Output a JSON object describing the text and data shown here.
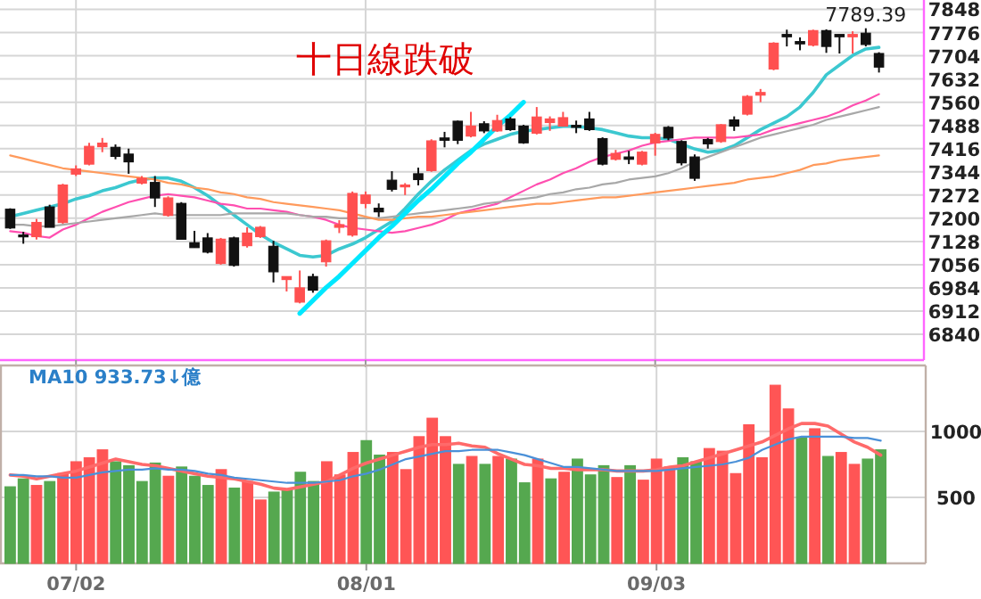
{
  "chart_data": [
    {
      "type": "candlestick",
      "categories": [
        null,
        null,
        null,
        null,
        null,
        null,
        null,
        null,
        null,
        null,
        null,
        null,
        null,
        null,
        null,
        null,
        null,
        null,
        null,
        null,
        null,
        null,
        null,
        null,
        null,
        null,
        null,
        null,
        null,
        null,
        null,
        null,
        null,
        null,
        null,
        null,
        null,
        null,
        null,
        null,
        null,
        null,
        null,
        null,
        null,
        null,
        null,
        null,
        null,
        null,
        null,
        null,
        null,
        null,
        null,
        null,
        null,
        null,
        null,
        null,
        null,
        null,
        null,
        null,
        null,
        null,
        null
      ],
      "ohlc": [
        [
          7228,
          7231,
          7167,
          7170
        ],
        [
          7148,
          7158,
          7121,
          7143
        ],
        [
          7143,
          7198,
          7134,
          7187
        ],
        [
          7235,
          7242,
          7172,
          7172
        ],
        [
          7187,
          7307,
          7183,
          7303
        ],
        [
          7337,
          7364,
          7331,
          7353
        ],
        [
          7368,
          7434,
          7364,
          7423
        ],
        [
          7422,
          7449,
          7405,
          7433
        ],
        [
          7420,
          7429,
          7383,
          7392
        ],
        [
          7399,
          7416,
          7338,
          7375
        ],
        [
          7309,
          7331,
          7305,
          7324
        ],
        [
          7311,
          7331,
          7235,
          7263
        ],
        [
          7209,
          7268,
          7205,
          7263
        ],
        [
          7246,
          7250,
          7135,
          7135
        ],
        [
          7124,
          7161,
          7109,
          7109
        ],
        [
          7139,
          7154,
          7091,
          7095
        ],
        [
          7060,
          7139,
          7056,
          7135
        ],
        [
          7139,
          7143,
          7050,
          7054
        ],
        [
          7115,
          7172,
          7109,
          7154
        ],
        [
          7143,
          7176,
          7139,
          7172
        ],
        [
          7113,
          7130,
          7001,
          7034
        ],
        [
          7010,
          7019,
          6973,
          7019
        ],
        [
          6940,
          7038,
          6936,
          6984
        ],
        [
          7019,
          7028,
          6969,
          6977
        ],
        [
          7065,
          7134,
          7050,
          7130
        ],
        [
          7172,
          7194,
          7154,
          7180
        ],
        [
          7148,
          7283,
          7143,
          7277
        ],
        [
          7246,
          7283,
          7231,
          7272
        ],
        [
          7231,
          7246,
          7204,
          7220
        ],
        [
          7318,
          7346,
          7283,
          7290
        ],
        [
          7300,
          7309,
          7272,
          7303
        ],
        [
          7338,
          7357,
          7302,
          7320
        ],
        [
          7348,
          7445,
          7344,
          7440
        ],
        [
          7449,
          7468,
          7420,
          7442
        ],
        [
          7501,
          7503,
          7430,
          7442
        ],
        [
          7455,
          7530,
          7451,
          7486
        ],
        [
          7493,
          7501,
          7464,
          7471
        ],
        [
          7471,
          7521,
          7468,
          7503
        ],
        [
          7508,
          7514,
          7471,
          7475
        ],
        [
          7486,
          7490,
          7431,
          7434
        ],
        [
          7464,
          7545,
          7460,
          7514
        ],
        [
          7497,
          7516,
          7471,
          7508
        ],
        [
          7486,
          7530,
          7484,
          7512
        ],
        [
          7488,
          7503,
          7464,
          7482
        ],
        [
          7508,
          7530,
          7471,
          7475
        ],
        [
          7447,
          7451,
          7364,
          7368
        ],
        [
          7383,
          7412,
          7379,
          7401
        ],
        [
          7390,
          7409,
          7368,
          7383
        ],
        [
          7368,
          7409,
          7364,
          7405
        ],
        [
          7434,
          7465,
          7394,
          7460
        ],
        [
          7482,
          7486,
          7442,
          7449
        ],
        [
          7438,
          7442,
          7364,
          7372
        ],
        [
          7390,
          7398,
          7316,
          7324
        ],
        [
          7444,
          7449,
          7416,
          7431
        ],
        [
          7438,
          7492,
          7434,
          7490
        ],
        [
          7505,
          7516,
          7471,
          7486
        ],
        [
          7523,
          7582,
          7519,
          7578
        ],
        [
          7582,
          7601,
          7560,
          7590
        ],
        [
          7663,
          7746,
          7659,
          7743
        ],
        [
          7770,
          7785,
          7733,
          7763
        ],
        [
          7748,
          7761,
          7721,
          7741
        ],
        [
          7737,
          7785,
          7733,
          7782
        ],
        [
          7782,
          7786,
          7713,
          7733
        ],
        [
          7770,
          7770,
          7711,
          7763
        ],
        [
          7763,
          7780,
          7711,
          7770
        ],
        [
          7774,
          7789.39,
          7733,
          7739
        ],
        [
          7711,
          7715,
          7652,
          7669
        ]
      ],
      "colors": [
        "#111111",
        "#111111",
        "#ff5050",
        "#111111",
        "#ff5050",
        "#ff5050",
        "#ff5050",
        "#ff5050",
        "#111111",
        "#111111",
        "#ff5050",
        "#111111",
        "#ff5050",
        "#111111",
        "#111111",
        "#111111",
        "#ff5050",
        "#111111",
        "#ff5050",
        "#ff5050",
        "#111111",
        "#ff5050",
        "#ff5050",
        "#111111",
        "#ff5050",
        "#ff5050",
        "#ff5050",
        "#ff5050",
        "#111111",
        "#111111",
        "#ff5050",
        "#111111",
        "#ff5050",
        "#111111",
        "#111111",
        "#ff5050",
        "#111111",
        "#ff5050",
        "#111111",
        "#111111",
        "#ff5050",
        "#ff5050",
        "#ff5050",
        "#111111",
        "#111111",
        "#111111",
        "#ff5050",
        "#111111",
        "#ff5050",
        "#ff5050",
        "#111111",
        "#111111",
        "#111111",
        "#111111",
        "#ff5050",
        "#111111",
        "#ff5050",
        "#ff5050",
        "#ff5050",
        "#111111",
        "#111111",
        "#ff5050",
        "#111111",
        "#111111",
        "#ff5050",
        "#111111",
        "#111111"
      ],
      "series": [
        {
          "type": "line",
          "color": "#3cc8d0",
          "values": [
            7205,
            7215,
            7225,
            7235,
            7245,
            7260,
            7270,
            7285,
            7295,
            7310,
            7320,
            7325,
            7325,
            7315,
            7295,
            7270,
            7240,
            7210,
            7180,
            7150,
            7125,
            7105,
            7085,
            7080,
            7085,
            7105,
            7120,
            7140,
            7165,
            7190,
            7230,
            7275,
            7315,
            7350,
            7380,
            7410,
            7430,
            7445,
            7460,
            7470,
            7475,
            7480,
            7485,
            7485,
            7480,
            7475,
            7465,
            7455,
            7450,
            7450,
            7445,
            7430,
            7415,
            7405,
            7410,
            7425,
            7450,
            7475,
            7495,
            7515,
            7545,
            7590,
            7645,
            7675,
            7705,
            7725,
            7730
          ]
        },
        {
          "type": "line",
          "color": "#ff4fb0",
          "values": [
            7160,
            7155,
            7145,
            7140,
            7165,
            7180,
            7200,
            7220,
            7235,
            7250,
            7260,
            7270,
            7275,
            7270,
            7265,
            7255,
            7245,
            7240,
            7230,
            7230,
            7225,
            7220,
            7210,
            7205,
            7195,
            7180,
            7170,
            7165,
            7160,
            7155,
            7160,
            7170,
            7180,
            7195,
            7215,
            7225,
            7235,
            7245,
            7265,
            7285,
            7305,
            7320,
            7340,
            7355,
            7375,
            7390,
            7400,
            7410,
            7425,
            7435,
            7440,
            7445,
            7450,
            7450,
            7450,
            7450,
            7455,
            7460,
            7475,
            7485,
            7495,
            7505,
            7515,
            7530,
            7550,
            7565,
            7585
          ]
        },
        {
          "type": "line",
          "color": "#a8a8a8",
          "values": [
            7180,
            7180,
            7175,
            7175,
            7180,
            7185,
            7190,
            7195,
            7200,
            7205,
            7210,
            7215,
            7210,
            7210,
            7210,
            7210,
            7210,
            7215,
            7215,
            7215,
            7215,
            7215,
            7210,
            7205,
            7205,
            7200,
            7200,
            7200,
            7200,
            7205,
            7210,
            7215,
            7220,
            7225,
            7230,
            7235,
            7245,
            7250,
            7255,
            7260,
            7265,
            7275,
            7280,
            7290,
            7295,
            7305,
            7310,
            7320,
            7325,
            7330,
            7340,
            7355,
            7375,
            7390,
            7405,
            7420,
            7435,
            7450,
            7460,
            7470,
            7480,
            7490,
            7505,
            7515,
            7525,
            7535,
            7545
          ]
        },
        {
          "type": "line",
          "color": "#ff9a5c",
          "values": [
            7395,
            7385,
            7375,
            7365,
            7355,
            7350,
            7345,
            7340,
            7335,
            7330,
            7325,
            7320,
            7310,
            7305,
            7295,
            7290,
            7280,
            7275,
            7265,
            7260,
            7250,
            7245,
            7240,
            7235,
            7230,
            7225,
            7215,
            7205,
            7195,
            7195,
            7200,
            7205,
            7205,
            7210,
            7215,
            7220,
            7225,
            7230,
            7235,
            7240,
            7245,
            7245,
            7250,
            7255,
            7260,
            7265,
            7265,
            7270,
            7275,
            7280,
            7285,
            7290,
            7295,
            7300,
            7305,
            7310,
            7320,
            7325,
            7330,
            7340,
            7350,
            7365,
            7370,
            7380,
            7385,
            7390,
            7395
          ]
        },
        {
          "type": "line",
          "color": "#00e8ff",
          "values": [
            null,
            null,
            null,
            null,
            null,
            null,
            null,
            null,
            null,
            null,
            null,
            null,
            null,
            null,
            null,
            null,
            null,
            null,
            null,
            null,
            null,
            null,
            6905,
            6945,
            6985,
            7020,
            7060,
            7100,
            7140,
            7175,
            7215,
            7255,
            7290,
            7330,
            7370,
            7405,
            7445,
            7485,
            7520,
            7560,
            null,
            null,
            null,
            null,
            null,
            null,
            null,
            null,
            null,
            null,
            null,
            null,
            null,
            null,
            null,
            null,
            null,
            null,
            null,
            null,
            null,
            null,
            null,
            null,
            null,
            null,
            null
          ]
        }
      ],
      "annotations": [
        "十日線跌破",
        {
          "text": "7789.39",
          "y": 7789.39
        }
      ],
      "ylim": [
        6760,
        7877
      ],
      "yticks": [
        6840,
        6912,
        6984,
        7056,
        7128,
        7200,
        7272,
        7344,
        7416,
        7488,
        7560,
        7632,
        7704,
        7776,
        7848
      ],
      "grid": true,
      "tick_labels": "y"
    },
    {
      "type": "bar",
      "categories": [
        null,
        null,
        null,
        null,
        null,
        "07/02",
        null,
        null,
        null,
        null,
        null,
        null,
        null,
        null,
        null,
        null,
        null,
        null,
        null,
        null,
        null,
        null,
        null,
        null,
        null,
        null,
        null,
        "08/01",
        null,
        null,
        null,
        null,
        null,
        null,
        null,
        null,
        null,
        null,
        null,
        null,
        null,
        null,
        null,
        null,
        null,
        null,
        null,
        null,
        null,
        "09/03",
        null,
        null,
        null,
        null,
        null,
        null,
        null,
        null,
        null,
        null,
        null,
        null,
        null,
        null,
        null,
        null,
        null
      ],
      "values": [
        580,
        640,
        590,
        620,
        680,
        770,
        800,
        860,
        770,
        740,
        620,
        760,
        660,
        730,
        660,
        590,
        710,
        570,
        620,
        480,
        540,
        560,
        690,
        620,
        770,
        670,
        840,
        930,
        820,
        840,
        710,
        960,
        1100,
        960,
        750,
        810,
        750,
        810,
        790,
        610,
        790,
        640,
        690,
        790,
        670,
        740,
        650,
        740,
        630,
        790,
        730,
        800,
        770,
        870,
        850,
        680,
        1050,
        800,
        1350,
        1170,
        950,
        1020,
        810,
        840,
        750,
        790,
        860
      ],
      "colors": [
        "#55a84f",
        "#55a84f",
        "#ff5555",
        "#55a84f",
        "#ff5555",
        "#ff5555",
        "#ff5555",
        "#ff5555",
        "#55a84f",
        "#55a84f",
        "#55a84f",
        "#55a84f",
        "#ff5555",
        "#55a84f",
        "#55a84f",
        "#55a84f",
        "#ff5555",
        "#55a84f",
        "#ff5555",
        "#ff5555",
        "#55a84f",
        "#55a84f",
        "#55a84f",
        "#55a84f",
        "#ff5555",
        "#ff5555",
        "#ff5555",
        "#55a84f",
        "#55a84f",
        "#ff5555",
        "#ff5555",
        "#ff5555",
        "#ff5555",
        "#ff5555",
        "#55a84f",
        "#ff5555",
        "#55a84f",
        "#ff5555",
        "#55a84f",
        "#55a84f",
        "#ff5555",
        "#55a84f",
        "#ff5555",
        "#55a84f",
        "#55a84f",
        "#55a84f",
        "#ff5555",
        "#55a84f",
        "#ff5555",
        "#ff5555",
        "#ff5555",
        "#55a84f",
        "#55a84f",
        "#ff5555",
        "#ff5555",
        "#ff5555",
        "#ff5555",
        "#ff5555",
        "#ff5555",
        "#ff5555",
        "#55a84f",
        "#ff5555",
        "#55a84f",
        "#ff5555",
        "#ff5555",
        "#55a84f",
        "#55a84f"
      ],
      "series": [
        {
          "type": "line",
          "color": "#ff6a6a",
          "values": [
            670,
            660,
            640,
            660,
            680,
            700,
            730,
            760,
            790,
            770,
            750,
            740,
            720,
            700,
            680,
            660,
            650,
            640,
            620,
            600,
            570,
            560,
            580,
            600,
            620,
            670,
            720,
            760,
            790,
            820,
            850,
            880,
            900,
            900,
            910,
            890,
            880,
            830,
            790,
            750,
            740,
            720,
            720,
            710,
            710,
            710,
            700,
            700,
            700,
            710,
            730,
            740,
            770,
            800,
            830,
            860,
            890,
            920,
            970,
            1020,
            1060,
            1060,
            1040,
            980,
            920,
            880,
            820
          ]
        },
        {
          "type": "line",
          "color": "#4a90d8",
          "values": [
            670,
            670,
            660,
            660,
            650,
            650,
            670,
            690,
            700,
            710,
            710,
            720,
            710,
            710,
            700,
            680,
            670,
            650,
            640,
            630,
            620,
            610,
            610,
            610,
            620,
            630,
            660,
            680,
            710,
            750,
            790,
            810,
            830,
            850,
            850,
            860,
            860,
            860,
            840,
            820,
            790,
            760,
            730,
            730,
            720,
            710,
            700,
            700,
            700,
            700,
            710,
            720,
            730,
            740,
            750,
            770,
            800,
            860,
            900,
            940,
            960,
            960,
            960,
            960,
            950,
            950,
            930
          ]
        }
      ],
      "annotations": [
        "MA10 933.73↓億"
      ],
      "ylim": [
        0,
        1500
      ],
      "yticks": [
        500,
        1000
      ],
      "grid": true
    }
  ]
}
